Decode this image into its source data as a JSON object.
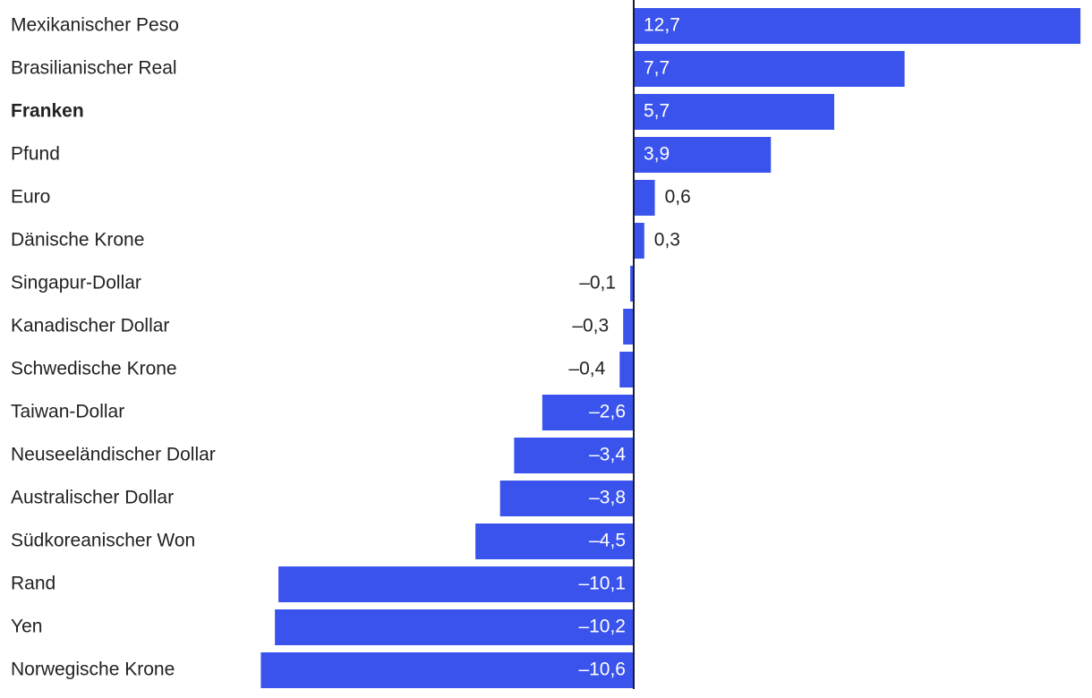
{
  "chart_data": {
    "type": "bar",
    "orientation": "horizontal",
    "highlighted_category": "Franken",
    "categories": [
      "Mexikanischer Peso",
      "Brasilianischer Real",
      "Franken",
      "Pfund",
      "Euro",
      "Dänische Krone",
      "Singapur-Dollar",
      "Kanadischer Dollar",
      "Schwedische Krone",
      "Taiwan-Dollar",
      "Neuseeländischer Dollar",
      "Australischer Dollar",
      "Südkoreanischer Won",
      "Rand",
      "Yen",
      "Norwegische Krone"
    ],
    "values": [
      12.7,
      7.7,
      5.7,
      3.9,
      0.6,
      0.3,
      -0.1,
      -0.3,
      -0.4,
      -2.6,
      -3.4,
      -3.8,
      -4.5,
      -10.1,
      -10.2,
      -10.6
    ],
    "value_labels": [
      "12,7",
      "7,7",
      "5,7",
      "3,9",
      "0,6",
      "0,3",
      "–0,1",
      "–0,3",
      "–0,4",
      "–2,6",
      "–3,4",
      "–3,8",
      "–4,5",
      "–10,1",
      "–10,2",
      "–10,6"
    ],
    "colors": {
      "bar": "#3953ec",
      "axis": "#1a1a3a",
      "label": "#222222",
      "inside_label": "#ffffff"
    }
  }
}
